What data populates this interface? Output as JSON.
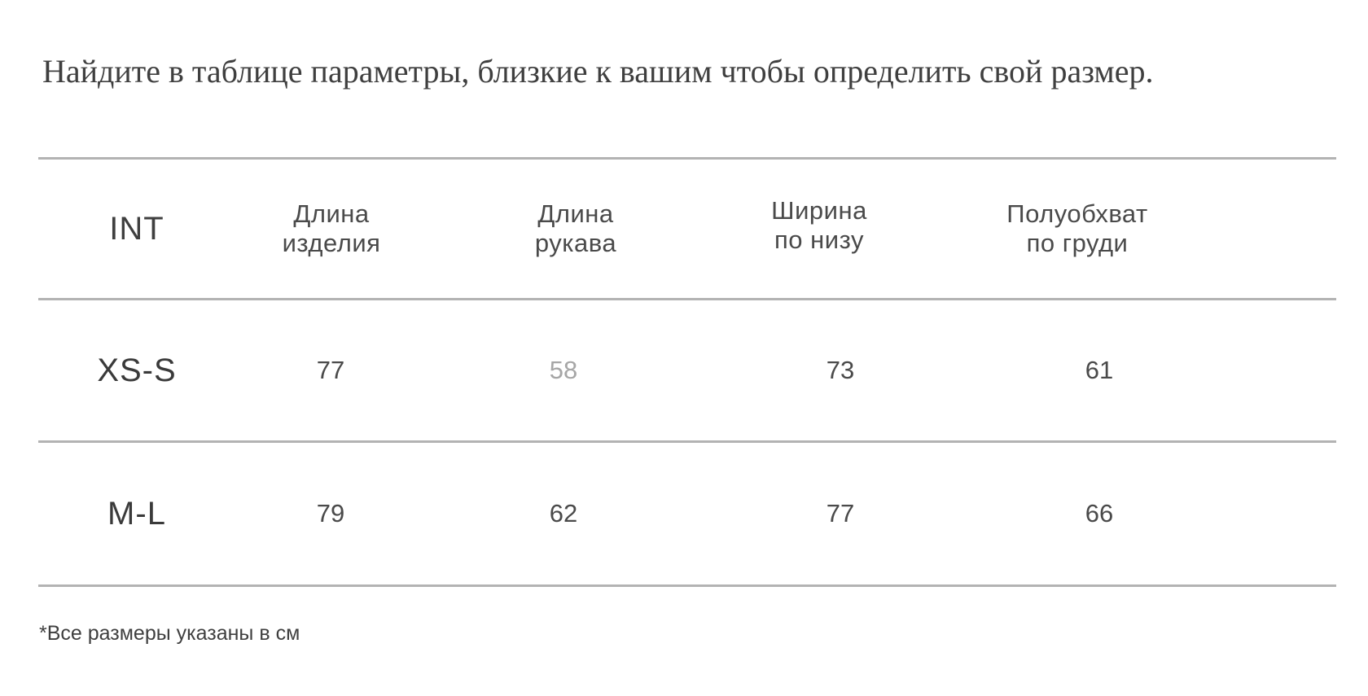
{
  "title": "Найдите в таблице параметры, близкие к вашим чтобы определить свой размер.",
  "table": {
    "headers": [
      {
        "line1": "INT",
        "line2": ""
      },
      {
        "line1": "Длина",
        "line2": "изделия"
      },
      {
        "line1": "Длина",
        "line2": "рукава"
      },
      {
        "line1": "Ширина",
        "line2": "по низу"
      },
      {
        "line1": "Полуобхват",
        "line2": "по груди"
      }
    ],
    "rows": [
      {
        "size": "XS-S",
        "values": [
          "77",
          "58",
          "73",
          "61"
        ]
      },
      {
        "size": "M-L",
        "values": [
          "79",
          "62",
          "77",
          "66"
        ]
      }
    ]
  },
  "footnote": "*Все размеры указаны в см",
  "colors": {
    "text": "#3a3a3a",
    "muted_value": "#a6a6a6",
    "rule": "#b3b3b3"
  }
}
